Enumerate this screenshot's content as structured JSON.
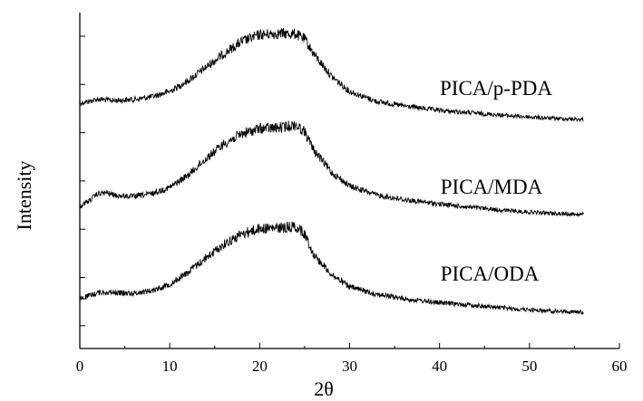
{
  "chart_data": {
    "type": "line",
    "title": "",
    "xlabel": "2θ",
    "ylabel": "Intensity",
    "xlim": [
      0,
      60
    ],
    "x_ticks": [
      0,
      10,
      20,
      30,
      40,
      50,
      60
    ],
    "x_tick_labels": [
      "0",
      "10",
      "20",
      "30",
      "40",
      "50",
      "60"
    ],
    "y_tick_labels_shown": false,
    "grid": false,
    "series": [
      {
        "name": "PICA/p-PDA",
        "x": [
          0,
          1,
          2,
          3,
          4,
          6,
          8,
          10,
          12,
          14,
          16,
          18,
          20,
          22,
          24,
          25,
          26,
          28,
          30,
          33,
          36,
          40,
          44,
          48,
          52,
          56
        ],
        "y": [
          0.46,
          0.5,
          0.55,
          0.53,
          0.52,
          0.54,
          0.6,
          0.72,
          0.95,
          1.25,
          1.55,
          1.82,
          1.97,
          2.0,
          1.99,
          1.88,
          1.55,
          1.05,
          0.72,
          0.5,
          0.4,
          0.3,
          0.24,
          0.18,
          0.13,
          0.1
        ]
      },
      {
        "name": "PICA/MDA",
        "x": [
          0,
          1,
          2,
          3,
          4,
          6,
          8,
          10,
          12,
          14,
          16,
          18,
          20,
          22,
          24,
          25,
          26,
          28,
          30,
          33,
          36,
          40,
          44,
          48,
          52,
          56
        ],
        "y": [
          0.3,
          0.42,
          0.58,
          0.6,
          0.54,
          0.52,
          0.58,
          0.72,
          0.98,
          1.35,
          1.68,
          1.9,
          2.02,
          2.03,
          2.1,
          1.95,
          1.55,
          1.05,
          0.75,
          0.55,
          0.45,
          0.35,
          0.27,
          0.2,
          0.15,
          0.12
        ]
      },
      {
        "name": "PICA/ODA",
        "x": [
          0,
          1,
          2,
          3,
          4,
          6,
          8,
          10,
          12,
          14,
          16,
          18,
          20,
          22,
          24,
          25,
          26,
          28,
          30,
          33,
          36,
          40,
          44,
          48,
          52,
          56
        ],
        "y": [
          0.42,
          0.48,
          0.55,
          0.57,
          0.55,
          0.54,
          0.6,
          0.74,
          1.0,
          1.32,
          1.62,
          1.85,
          1.97,
          1.98,
          2.02,
          1.85,
          1.4,
          0.95,
          0.68,
          0.52,
          0.42,
          0.33,
          0.27,
          0.2,
          0.15,
          0.12
        ]
      }
    ]
  }
}
